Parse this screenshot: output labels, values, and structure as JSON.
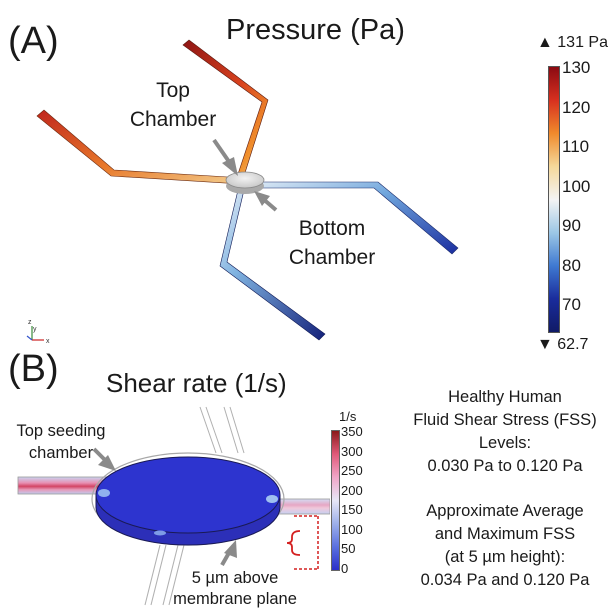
{
  "panel_a": {
    "label": "(A)",
    "title": "Pressure (Pa)",
    "callouts": {
      "top_chamber": [
        "Top",
        "Chamber"
      ],
      "bottom_chamber": [
        "Bottom",
        "Chamber"
      ]
    },
    "colorbar": {
      "max_marker": "▲ 131 Pa",
      "min_marker": "▼ 62.7",
      "ticks": [
        "130",
        "120",
        "110",
        "100",
        "90",
        "80",
        "70"
      ],
      "colors": [
        "#8b0a12",
        "#d7301f",
        "#f08a2c",
        "#f5d89a",
        "#f4f4f4",
        "#9cc7e6",
        "#3f79d1",
        "#1a2c9c",
        "#101a66"
      ]
    },
    "axes_triad": {
      "z": "z",
      "y": "y",
      "x": "x"
    }
  },
  "panel_b": {
    "label": "(B)",
    "title": "Shear rate (1/s)",
    "callouts": {
      "top_seeding": [
        "Top seeding",
        "chamber"
      ],
      "membrane": [
        "5 µm above",
        "membrane plane"
      ]
    },
    "colorbar": {
      "unit": "1/s",
      "ticks": [
        "350",
        "300",
        "250",
        "200",
        "150",
        "100",
        "50",
        "0"
      ],
      "colors": [
        "#8b1a1a",
        "#e05a7a",
        "#f0a6c8",
        "#e7e7f7",
        "#9db0ea",
        "#5a70df",
        "#2b2fc9"
      ]
    },
    "notes": {
      "healthy": [
        "Healthy Human",
        "Fluid Shear Stress (FSS)",
        "Levels:",
        "0.030 Pa to 0.120 Pa"
      ],
      "approx": [
        "Approximate Average",
        "and Maximum FSS",
        "(at 5 µm height):",
        "0.034 Pa and 0.120 Pa"
      ]
    }
  }
}
